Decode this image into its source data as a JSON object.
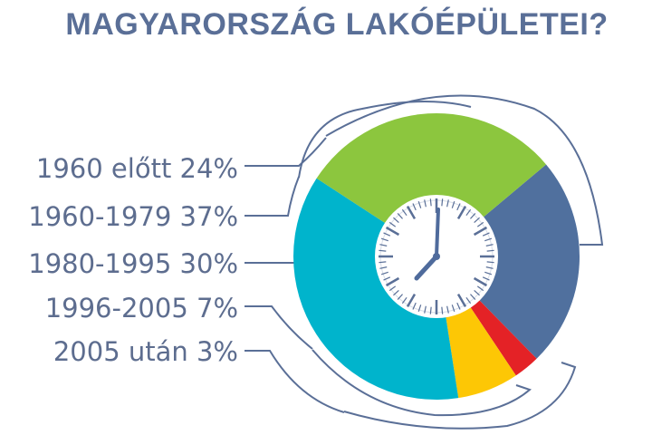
{
  "chart_data": {
    "type": "pie",
    "title": "MAGYARORSZÁG LAKÓÉPÜLETEI?",
    "slices": [
      {
        "label": "1960 előtt 24%",
        "value": 24,
        "color": "#50709e"
      },
      {
        "label": "1960-1979 37%",
        "value": 37,
        "color": "#00b4cc"
      },
      {
        "label": "1980-1995 30%",
        "value": 30,
        "color": "#8cc63e"
      },
      {
        "label": "1996-2005 7%",
        "value": 7,
        "color": "#fdc705"
      },
      {
        "label": "2005 után 3%",
        "value": 3,
        "color": "#e42226"
      }
    ]
  },
  "icons": {
    "center": "clock-icon"
  }
}
